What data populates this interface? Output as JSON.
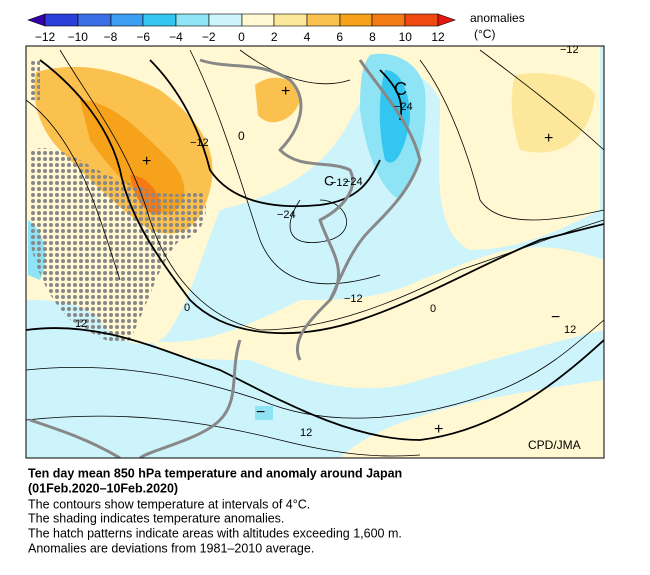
{
  "legend": {
    "ticks": [
      "−12",
      "−10",
      "−8",
      "−6",
      "−4",
      "−2",
      "0",
      "2",
      "4",
      "6",
      "8",
      "10",
      "12"
    ],
    "title": "anomalies",
    "unit": "(°C)"
  },
  "map": {
    "credit": "CPD/JMA",
    "contour_labels": [
      "−12",
      "−12",
      "−24",
      "−24",
      "−24",
      "−12",
      "0",
      "0",
      "12",
      "−12",
      "12",
      "12"
    ],
    "symbols": [
      "C",
      "C",
      "+",
      "+",
      "+",
      "+",
      "−",
      "−",
      "0"
    ]
  },
  "caption": {
    "title": "Ten day mean 850 hPa temperature and anomaly around Japan",
    "period": "(01Feb.2020–10Feb.2020)",
    "lines": [
      "The contours show temperature at intervals of 4°C.",
      "The shading indicates temperature anomalies.",
      "The hatch patterns indicate areas with altitudes exceeding 1,600 m.",
      "Anomalies are deviations from 1981–2010 average."
    ]
  }
}
